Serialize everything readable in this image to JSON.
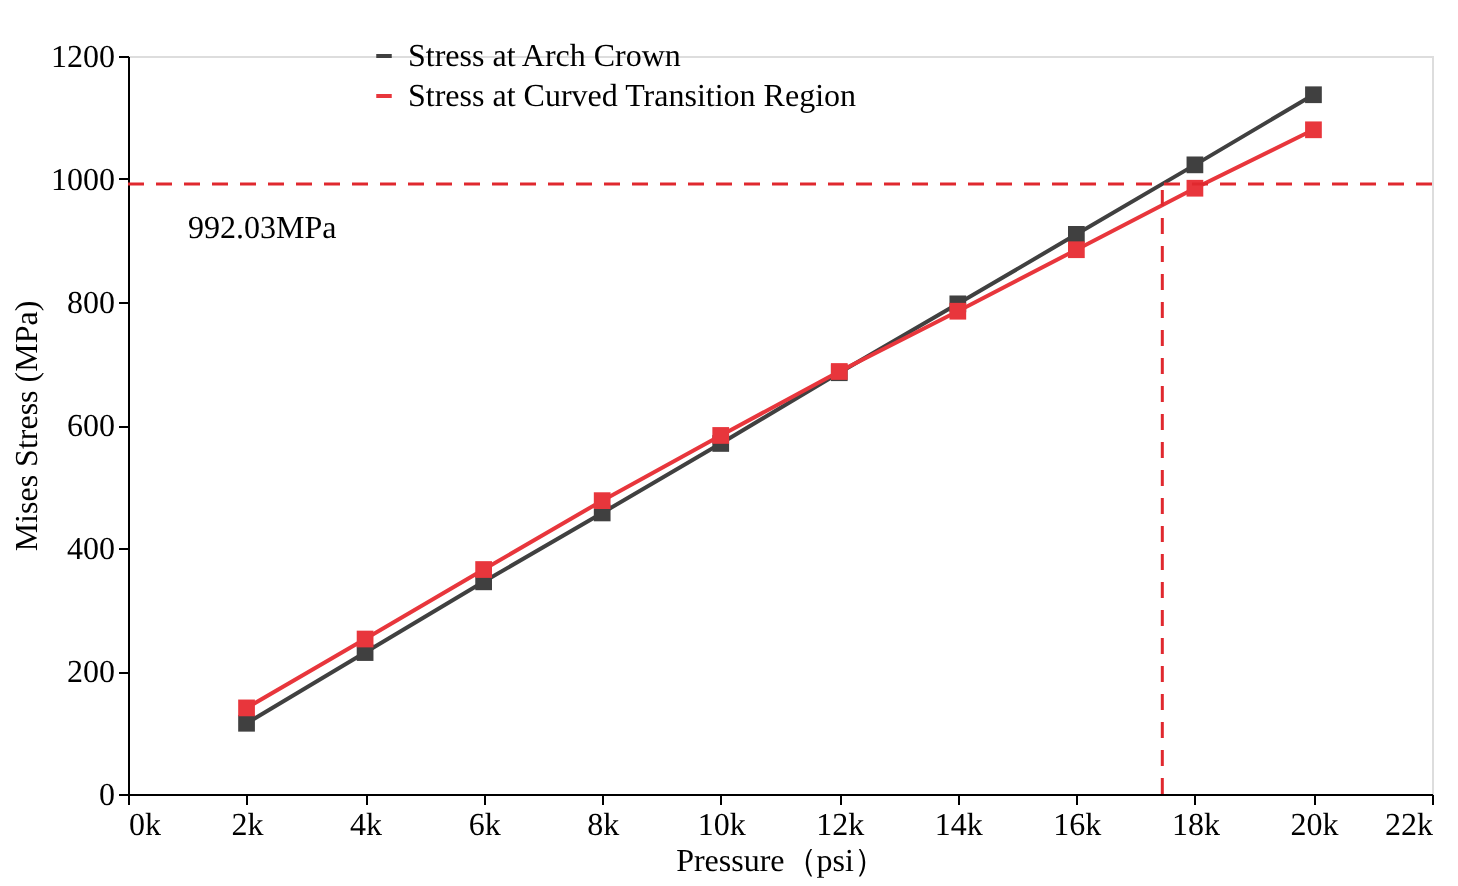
{
  "chart_data": {
    "type": "line",
    "xlabel": "Pressure（psi）",
    "ylabel": "Mises Stress (MPa)",
    "x": [
      2000,
      4000,
      6000,
      8000,
      10000,
      12000,
      14000,
      16000,
      18000,
      20000
    ],
    "series": [
      {
        "name": "Stress at Arch Crown",
        "color": "#404040",
        "values": [
          115,
          230,
          345,
          457,
          570,
          685,
          797,
          910,
          1023,
          1137
        ]
      },
      {
        "name": "Stress at Curved Transition Region",
        "color": "#e8363c",
        "values": [
          140,
          252,
          365,
          477,
          583,
          687,
          785,
          885,
          985,
          1080
        ]
      }
    ],
    "xlim": [
      0,
      22000
    ],
    "xticks": [
      {
        "value": 0,
        "label": "0k"
      },
      {
        "value": 2000,
        "label": "2k"
      },
      {
        "value": 4000,
        "label": "4k"
      },
      {
        "value": 6000,
        "label": "6k"
      },
      {
        "value": 8000,
        "label": "8k"
      },
      {
        "value": 10000,
        "label": "10k"
      },
      {
        "value": 12000,
        "label": "12k"
      },
      {
        "value": 14000,
        "label": "14k"
      },
      {
        "value": 16000,
        "label": "16k"
      },
      {
        "value": 18000,
        "label": "18k"
      },
      {
        "value": 20000,
        "label": "20k"
      },
      {
        "value": 22000,
        "label": "22k"
      }
    ],
    "ylim": [
      0,
      1200
    ],
    "yticks": [
      0,
      200,
      400,
      600,
      800,
      1000,
      1200
    ],
    "ref_lines": [
      {
        "axis": "y",
        "value": 992.03,
        "label": "992.03MPa",
        "color": "#e0282e",
        "line_style": "dashed"
      },
      {
        "axis": "x",
        "value": 17450,
        "color": "#e0282e",
        "line_style": "dashed"
      }
    ],
    "marker": "square",
    "line_style": "solid",
    "grid": false,
    "legend": "top"
  }
}
